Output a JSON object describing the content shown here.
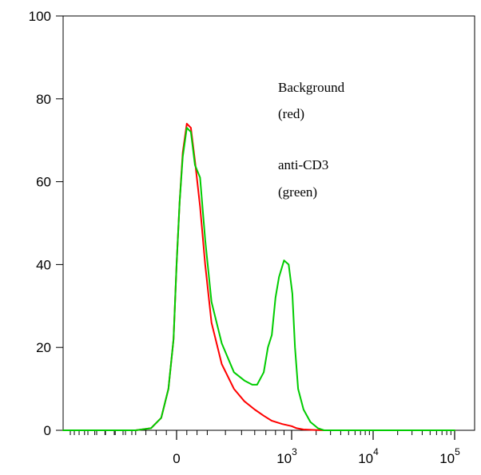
{
  "chart_data": {
    "type": "line",
    "title": "",
    "xlabel": "",
    "ylabel": "",
    "x_scale": "biexponential",
    "ylim": [
      0,
      100
    ],
    "grid": false,
    "y_ticks": [
      {
        "value": 0,
        "label": "0"
      },
      {
        "value": 20,
        "label": "20"
      },
      {
        "value": 40,
        "label": "40"
      },
      {
        "value": 60,
        "label": "60"
      },
      {
        "value": 80,
        "label": "80"
      },
      {
        "value": 100,
        "label": "100"
      }
    ],
    "x_ticks": [
      {
        "value": 0,
        "base": "0",
        "exp": ""
      },
      {
        "value": 1000,
        "base": "10",
        "exp": "3"
      },
      {
        "value": 10000,
        "base": "10",
        "exp": "4"
      },
      {
        "value": 100000,
        "base": "10",
        "exp": "5"
      }
    ],
    "annotations": [
      {
        "id": "background",
        "lines": [
          "Background",
          "(red)"
        ]
      },
      {
        "id": "anticd3",
        "lines": [
          "anti-CD3",
          "(green)"
        ]
      }
    ],
    "series": [
      {
        "color": "#ff0000",
        "x": [
          -3000,
          -400,
          -250,
          -150,
          -80,
          -30,
          0,
          30,
          60,
          100,
          140,
          180,
          230,
          280,
          330,
          380,
          450,
          520,
          600,
          680,
          760,
          880,
          1000,
          1150,
          1400,
          1800,
          2500,
          5000,
          10000,
          100000
        ],
        "y": [
          0,
          0,
          0.5,
          3,
          10,
          22,
          40,
          55,
          67,
          74,
          73,
          65,
          54,
          40,
          26,
          16,
          10,
          7,
          5,
          3.5,
          2.3,
          1.5,
          1,
          0.5,
          0.2,
          0.1,
          0,
          0,
          0,
          0
        ]
      },
      {
        "color": "#00cc00",
        "x": [
          -3000,
          -400,
          -250,
          -150,
          -80,
          -30,
          0,
          30,
          60,
          100,
          140,
          180,
          230,
          280,
          330,
          380,
          450,
          520,
          580,
          620,
          680,
          720,
          760,
          800,
          840,
          900,
          960,
          1020,
          1100,
          1200,
          1400,
          1700,
          2100,
          2500,
          3000,
          5000,
          10000,
          100000
        ],
        "y": [
          0,
          0,
          0.5,
          3,
          10,
          22,
          40,
          55,
          66,
          73,
          72,
          64,
          61,
          46,
          31,
          21,
          14,
          12,
          11,
          11,
          14,
          20,
          23,
          32,
          37,
          41,
          40,
          33,
          20,
          10,
          5,
          2,
          0.5,
          0,
          0,
          0,
          0,
          0
        ]
      }
    ]
  }
}
